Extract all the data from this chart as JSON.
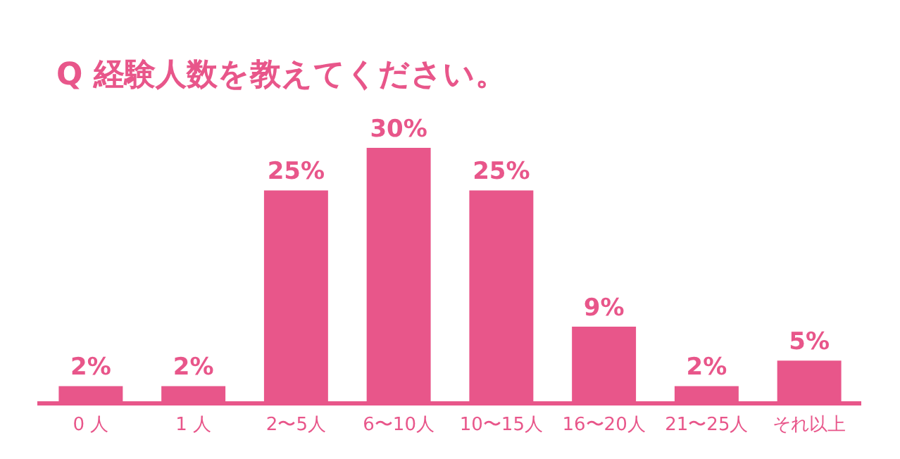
{
  "chart_data": {
    "type": "bar",
    "title": "Q 経験人数を教えてください。",
    "categories": [
      "0 人",
      "1 人",
      "2〜5人",
      "6〜10人",
      "10〜15人",
      "16〜20人",
      "21〜25人",
      "それ以上"
    ],
    "values": [
      2,
      2,
      25,
      30,
      25,
      9,
      2,
      5
    ],
    "value_labels": [
      "2%",
      "2%",
      "25%",
      "30%",
      "25%",
      "9%",
      "2%",
      "5%"
    ],
    "color": "#e8568a",
    "grid": false,
    "legend": false
  }
}
